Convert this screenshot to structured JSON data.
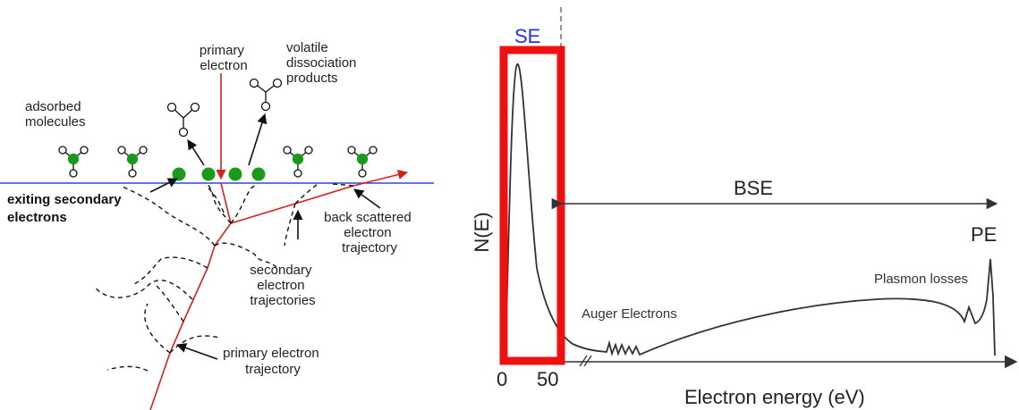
{
  "left_panel": {
    "labels": {
      "primary_electron": [
        "primary",
        "electron"
      ],
      "volatile_products": [
        "volatile",
        "dissociation",
        "products"
      ],
      "adsorbed_molecules": [
        "adsorbed",
        "molecules"
      ],
      "exiting_secondary": [
        "exiting secondary",
        "electrons"
      ],
      "back_scattered": [
        "back scattered",
        "electron",
        "trajectory"
      ],
      "secondary_trajectories": [
        "secondary",
        "electron",
        "trajectories"
      ],
      "primary_trajectory": [
        "primary electron",
        "trajectory"
      ]
    },
    "colors": {
      "primary_beam": "#d42020",
      "surface": "#3a46c8",
      "molecule_center": "#1a9a1a",
      "trajectory": "#111111"
    }
  },
  "right_panel": {
    "labels": {
      "se": "SE",
      "bse": "BSE",
      "pe": "PE",
      "plasmon": "Plasmon losses",
      "auger": "Auger Electrons",
      "ylabel": "N(E)",
      "xlabel": "Electron energy (eV)",
      "tick_0": "0",
      "tick_50": "50"
    },
    "colors": {
      "se_box": "#ee1111",
      "se_text": "#2233dd",
      "curve": "#333333"
    }
  }
}
